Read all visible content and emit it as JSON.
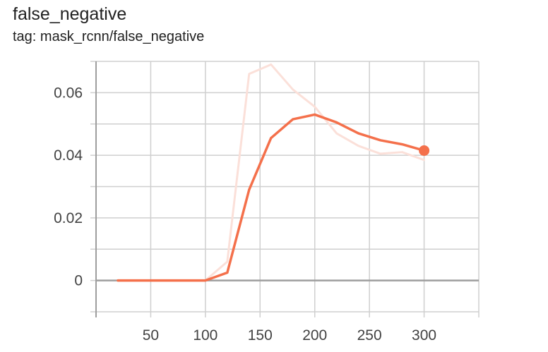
{
  "header": {
    "title": "false_negative",
    "subtitle": "tag: mask_rcnn/false_negative"
  },
  "chart_data": {
    "type": "line",
    "title": "false_negative",
    "subtitle": "tag: mask_rcnn/false_negative",
    "xlabel": "",
    "ylabel": "",
    "xlim": [
      0,
      350
    ],
    "ylim": [
      -0.01,
      0.07
    ],
    "x_ticks": [
      50,
      100,
      150,
      200,
      250,
      300
    ],
    "x_tick_labels": [
      "50",
      "100",
      "150",
      "200",
      "250",
      "300"
    ],
    "y_ticks": [
      0,
      0.02,
      0.04,
      0.06
    ],
    "y_tick_labels": [
      "0",
      "0.02",
      "0.04",
      "0.06"
    ],
    "grid": true,
    "series": [
      {
        "role": "raw",
        "color": "#fbe0d9",
        "x": [
          20,
          40,
          60,
          80,
          100,
          120,
          140,
          160,
          180,
          200,
          220,
          240,
          260,
          280,
          300
        ],
        "y": [
          0,
          0,
          0,
          0,
          0,
          0.006,
          0.066,
          0.069,
          0.061,
          0.0555,
          0.047,
          0.043,
          0.0405,
          0.041,
          0.0385
        ]
      },
      {
        "role": "smoothed",
        "color": "#f4704b",
        "x": [
          20,
          40,
          60,
          80,
          100,
          120,
          140,
          160,
          180,
          200,
          220,
          240,
          260,
          280,
          300
        ],
        "y": [
          0,
          0,
          0,
          0,
          0,
          0.0025,
          0.029,
          0.0455,
          0.0515,
          0.053,
          0.0505,
          0.047,
          0.0448,
          0.0435,
          0.0415
        ],
        "end_marker": true
      }
    ]
  }
}
